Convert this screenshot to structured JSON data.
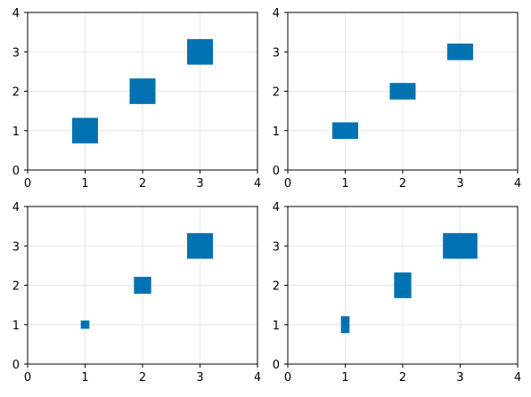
{
  "chart_data": [
    {
      "type": "scatter",
      "marker": "rect",
      "color": "#0072b2",
      "xlim": [
        0,
        4
      ],
      "ylim": [
        0,
        4
      ],
      "xticks": [
        "0",
        "1",
        "2",
        "3",
        "4"
      ],
      "yticks": [
        "0",
        "1",
        "2",
        "3",
        "4"
      ],
      "grid": true,
      "points": [
        {
          "x": 1,
          "y": 1,
          "w": 0.45,
          "h": 0.65
        },
        {
          "x": 2,
          "y": 2,
          "w": 0.45,
          "h": 0.65
        },
        {
          "x": 3,
          "y": 3,
          "w": 0.45,
          "h": 0.65
        }
      ]
    },
    {
      "type": "scatter",
      "marker": "rect",
      "color": "#0072b2",
      "xlim": [
        0,
        4
      ],
      "ylim": [
        0,
        4
      ],
      "xticks": [
        "0",
        "1",
        "2",
        "3",
        "4"
      ],
      "yticks": [
        "0",
        "1",
        "2",
        "3",
        "4"
      ],
      "grid": true,
      "points": [
        {
          "x": 1,
          "y": 1,
          "w": 0.45,
          "h": 0.42
        },
        {
          "x": 2,
          "y": 2,
          "w": 0.45,
          "h": 0.42
        },
        {
          "x": 3,
          "y": 3,
          "w": 0.45,
          "h": 0.42
        }
      ]
    },
    {
      "type": "scatter",
      "marker": "rect",
      "color": "#0072b2",
      "xlim": [
        0,
        4
      ],
      "ylim": [
        0,
        4
      ],
      "xticks": [
        "0",
        "1",
        "2",
        "3",
        "4"
      ],
      "yticks": [
        "0",
        "1",
        "2",
        "3",
        "4"
      ],
      "grid": true,
      "points": [
        {
          "x": 1,
          "y": 1,
          "w": 0.15,
          "h": 0.21
        },
        {
          "x": 2,
          "y": 2,
          "w": 0.3,
          "h": 0.43
        },
        {
          "x": 3,
          "y": 3,
          "w": 0.45,
          "h": 0.65
        }
      ]
    },
    {
      "type": "scatter",
      "marker": "rect",
      "color": "#0072b2",
      "xlim": [
        0,
        4
      ],
      "ylim": [
        0,
        4
      ],
      "xticks": [
        "0",
        "1",
        "2",
        "3",
        "4"
      ],
      "yticks": [
        "0",
        "1",
        "2",
        "3",
        "4"
      ],
      "grid": true,
      "points": [
        {
          "x": 1,
          "y": 1,
          "w": 0.15,
          "h": 0.43
        },
        {
          "x": 2,
          "y": 2,
          "w": 0.3,
          "h": 0.65
        },
        {
          "x": 3,
          "y": 3,
          "w": 0.6,
          "h": 0.65
        }
      ]
    }
  ]
}
